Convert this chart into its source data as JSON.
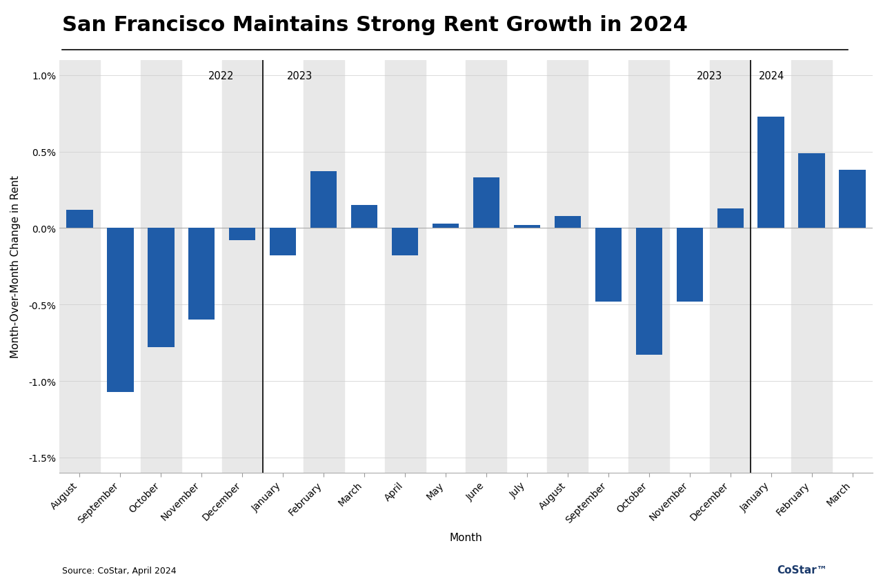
{
  "title": "San Francisco Maintains Strong Rent Growth in 2024",
  "xlabel": "Month",
  "ylabel": "Month-Over-Month Change in Rent",
  "source": "Source: CoStar, April 2024",
  "bar_color": "#1F5CA8",
  "background_color": "#FFFFFF",
  "stripe_color": "#E8E8E8",
  "categories": [
    "August",
    "September",
    "October",
    "November",
    "December",
    "January",
    "February",
    "March",
    "April",
    "May",
    "June",
    "July",
    "August",
    "September",
    "October",
    "November",
    "December",
    "January",
    "February",
    "March"
  ],
  "values": [
    0.12,
    -1.07,
    -0.78,
    -0.6,
    -0.08,
    -0.18,
    0.37,
    0.15,
    -0.18,
    0.03,
    0.33,
    0.02,
    0.08,
    -0.48,
    -0.83,
    -0.48,
    0.13,
    0.73,
    0.49,
    0.38
  ],
  "dividers": [
    4.5,
    16.5
  ],
  "ylim": [
    -1.6,
    1.1
  ],
  "yticks": [
    -1.5,
    -1.0,
    -0.5,
    0.0,
    0.5,
    1.0
  ],
  "year_label_positions": [
    {
      "label": "2022",
      "x": 3.8,
      "ha": "right"
    },
    {
      "label": "2023",
      "x": 5.1,
      "ha": "left"
    },
    {
      "label": "2023",
      "x": 15.8,
      "ha": "right"
    },
    {
      "label": "2024",
      "x": 16.7,
      "ha": "left"
    }
  ],
  "figsize": [
    12.8,
    8.53
  ],
  "dpi": 100,
  "title_fontsize": 22,
  "axis_label_fontsize": 11,
  "tick_label_fontsize": 10,
  "source_fontsize": 9,
  "costar_fontsize": 11
}
